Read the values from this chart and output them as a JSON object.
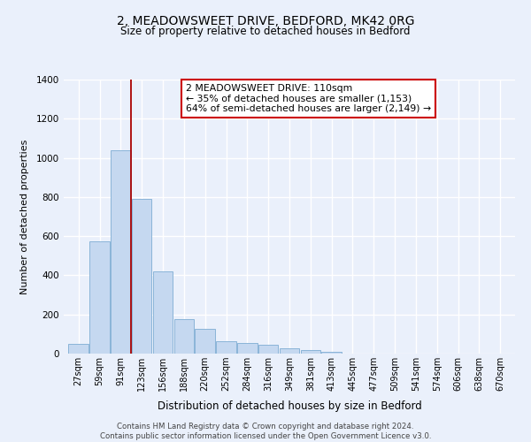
{
  "title1": "2, MEADOWSWEET DRIVE, BEDFORD, MK42 0RG",
  "title2": "Size of property relative to detached houses in Bedford",
  "xlabel": "Distribution of detached houses by size in Bedford",
  "ylabel": "Number of detached properties",
  "categories": [
    "27sqm",
    "59sqm",
    "91sqm",
    "123sqm",
    "156sqm",
    "188sqm",
    "220sqm",
    "252sqm",
    "284sqm",
    "316sqm",
    "349sqm",
    "381sqm",
    "413sqm",
    "445sqm",
    "477sqm",
    "509sqm",
    "541sqm",
    "574sqm",
    "606sqm",
    "638sqm",
    "670sqm"
  ],
  "values": [
    50,
    575,
    1040,
    790,
    420,
    178,
    125,
    62,
    52,
    45,
    25,
    18,
    8,
    2,
    1,
    0,
    0,
    0,
    0,
    0,
    0
  ],
  "bar_color": "#c5d8f0",
  "bar_edge_color": "#8ab4d8",
  "bg_color": "#eaf0fb",
  "grid_color": "#ffffff",
  "vline_color": "#aa0000",
  "vline_pos": 2.5,
  "ylim": [
    0,
    1400
  ],
  "yticks": [
    0,
    200,
    400,
    600,
    800,
    1000,
    1200,
    1400
  ],
  "annotation_title": "2 MEADOWSWEET DRIVE: 110sqm",
  "annotation_line1": "← 35% of detached houses are smaller (1,153)",
  "annotation_line2": "64% of semi-detached houses are larger (2,149) →",
  "box_facecolor": "#ffffff",
  "box_edgecolor": "#cc0000",
  "footer1": "Contains HM Land Registry data © Crown copyright and database right 2024.",
  "footer2": "Contains public sector information licensed under the Open Government Licence v3.0."
}
